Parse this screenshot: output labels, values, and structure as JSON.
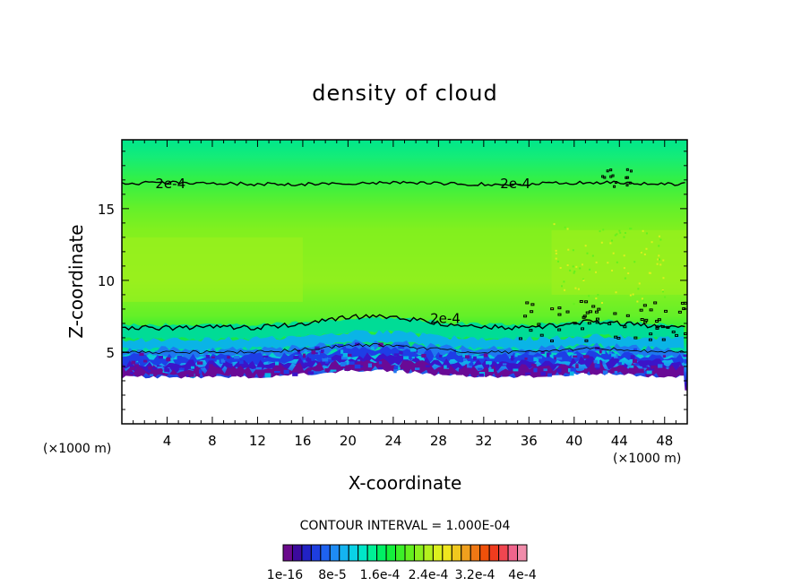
{
  "chart_data": {
    "type": "heatmap",
    "title": "density of cloud",
    "xlabel": "X-coordinate",
    "ylabel": "Z-coordinate",
    "x_unit": "(×1000 m)",
    "x_unit_right": "(×1000 m)",
    "x_ticks": [
      4,
      8,
      12,
      16,
      20,
      24,
      28,
      32,
      36,
      40,
      44,
      48
    ],
    "y_ticks": [
      5,
      10,
      15
    ],
    "xlim": [
      0,
      50
    ],
    "ylim": [
      0,
      19.8
    ],
    "contour_label": "2e-4",
    "contour_interval_text": "CONTOUR INTERVAL = 1.000E-04",
    "colorbar": {
      "colors": [
        "#6a0a8c",
        "#3c0a9c",
        "#2222c4",
        "#1e3ee0",
        "#1e62f0",
        "#1e8cf5",
        "#14b4f0",
        "#0ad2e6",
        "#00e6c8",
        "#00f096",
        "#00f064",
        "#14f03c",
        "#3cf028",
        "#64f01e",
        "#8cf01e",
        "#b4f01e",
        "#dcf01e",
        "#f0e61e",
        "#f0c81e",
        "#f0a01e",
        "#f07814",
        "#f0500a",
        "#f03c1e",
        "#f04650",
        "#f0648c",
        "#f08caa"
      ],
      "labels": [
        "1e-16",
        "8e-5",
        "1.6e-4",
        "2.4e-4",
        "3.2e-4",
        "4e-4"
      ]
    },
    "profile": [
      {
        "z_min": 0.0,
        "z_max": 3.5,
        "value": "none"
      },
      {
        "z_min": 3.5,
        "z_max": 4.3,
        "value": "1e-16 to 4e-5"
      },
      {
        "z_min": 4.3,
        "z_max": 5.3,
        "value": "4e-5 to 1.2e-4"
      },
      {
        "z_min": 5.3,
        "z_max": 7.0,
        "value": "1.2e-4 to 2e-4"
      },
      {
        "z_min": 7.0,
        "z_max": 16.8,
        "value": "2e-4 to 2.8e-4"
      },
      {
        "z_min": 16.8,
        "z_max": 19.8,
        "value": "1.2e-4 to 2e-4"
      }
    ],
    "grid": false
  }
}
